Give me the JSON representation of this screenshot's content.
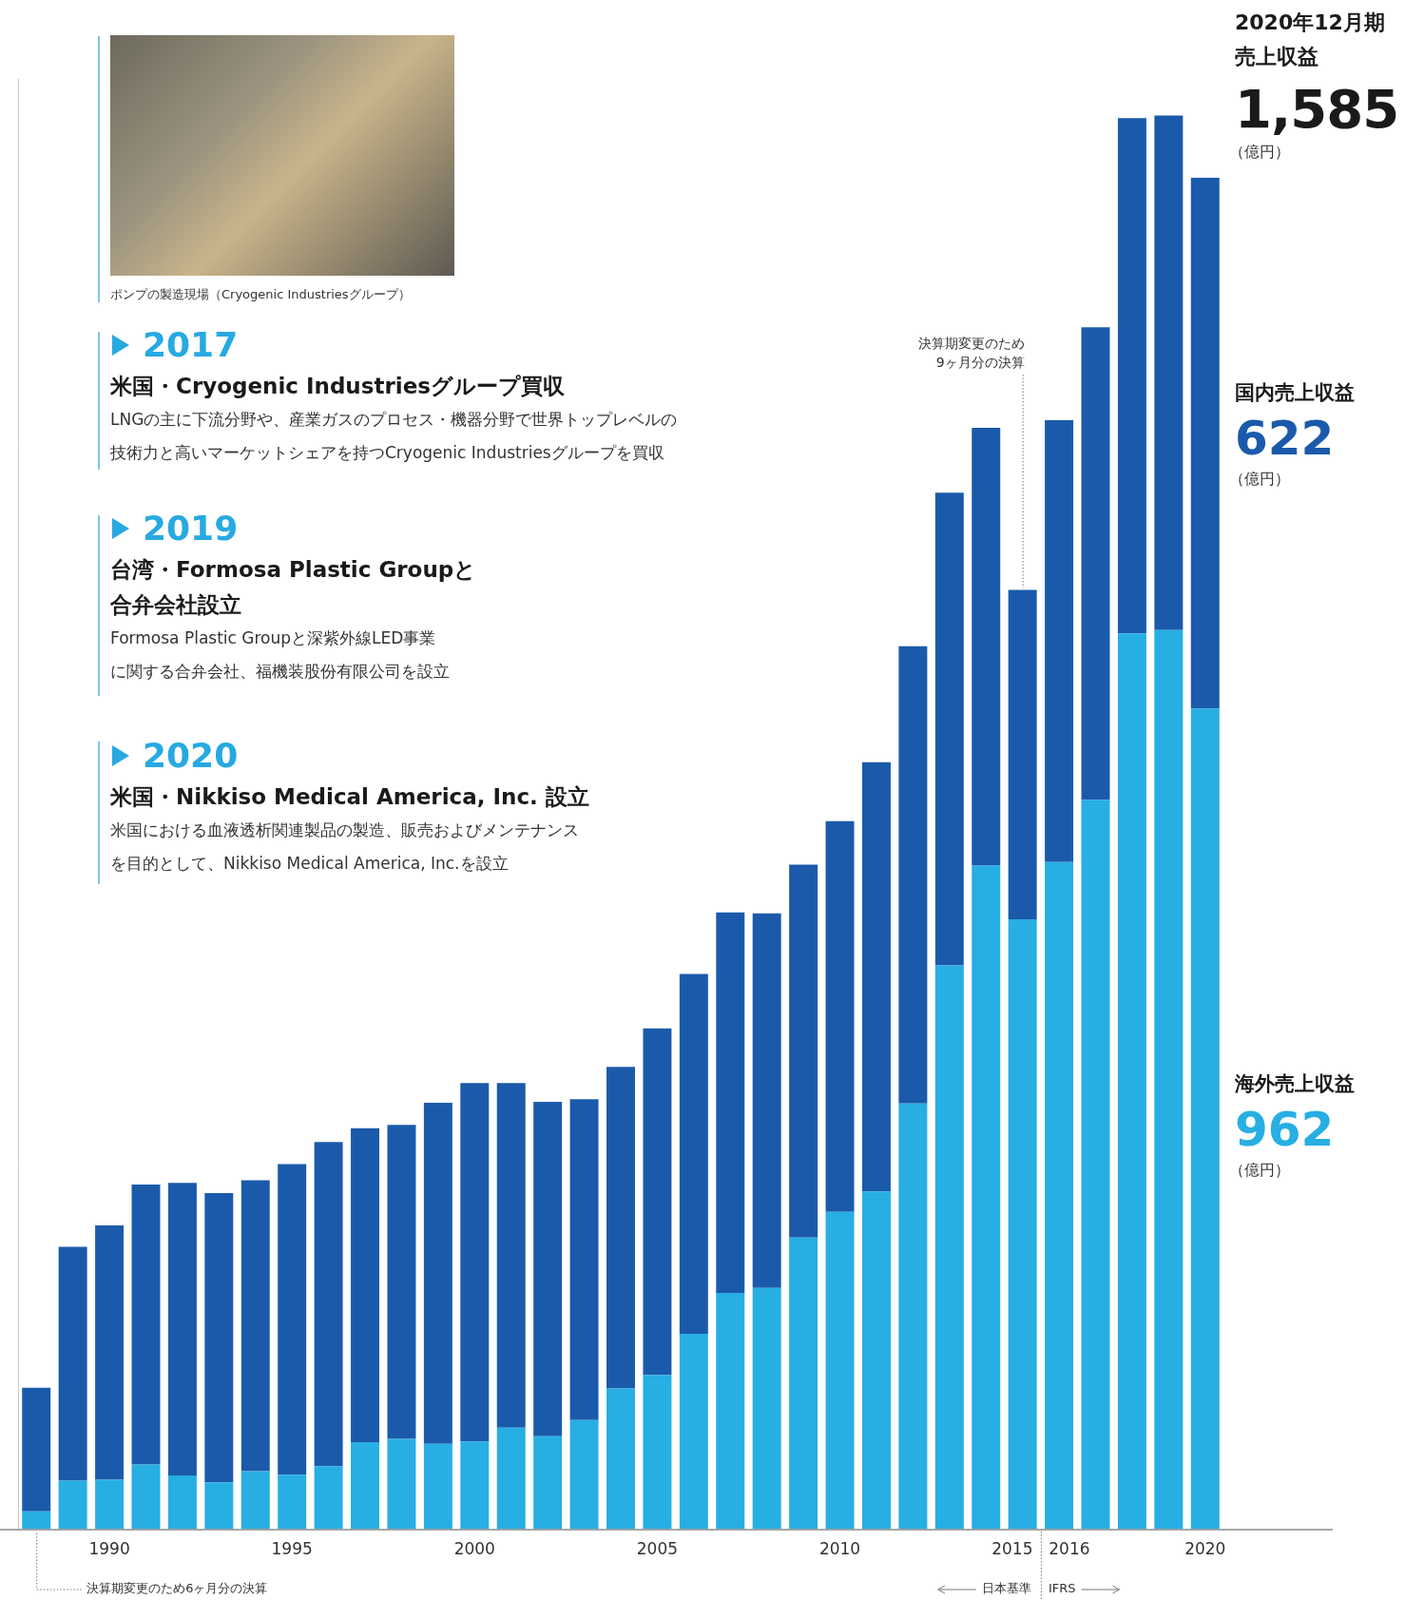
{
  "chart_data": {
    "type": "bar",
    "stacked": true,
    "grid": false,
    "tick_labels": "x",
    "categories": [
      null,
      null,
      "1990",
      null,
      null,
      null,
      null,
      "1995",
      null,
      null,
      null,
      null,
      "2000",
      null,
      null,
      null,
      null,
      "2005",
      null,
      null,
      null,
      null,
      "2010",
      null,
      null,
      null,
      null,
      "2015",
      "2016",
      null,
      null,
      null,
      "2020"
    ],
    "ylim": [
      0,
      1700
    ],
    "series": [
      {
        "name": "海外売上収益",
        "color": "#27aee3",
        "values": [
          21,
          57,
          58,
          76,
          63,
          55,
          68,
          64,
          74,
          102,
          106,
          100,
          103,
          119,
          109,
          128,
          165,
          181,
          229,
          277,
          283,
          342,
          372,
          396,
          499,
          661,
          778,
          715,
          782,
          855,
          1050,
          1054,
          962
        ],
        "unit": "（億円）"
      },
      {
        "name": "国内売上収益",
        "color": "#1b5aab",
        "values": [
          145,
          274,
          298,
          328,
          343,
          339,
          341,
          364,
          380,
          368,
          368,
          400,
          420,
          404,
          392,
          376,
          377,
          406,
          422,
          446,
          439,
          437,
          458,
          503,
          536,
          554,
          513,
          386,
          518,
          554,
          604,
          603,
          622
        ],
        "unit": "（億円）"
      }
    ],
    "summary": {
      "heading": [
        "2020年12月期",
        "売上収益"
      ],
      "value": 1585,
      "label": "1,585",
      "unit": "（億円）"
    },
    "notes": [
      {
        "text": [
          "決算期変更のため",
          "9ヶ月分の決算"
        ],
        "index": 27
      },
      {
        "text": [
          "決算期変更のため6ヶ月分の決算"
        ],
        "index": 0
      }
    ],
    "standards": {
      "before": "日本基準",
      "after": "IFRS",
      "index": 28
    }
  },
  "milestones": {
    "photo_caption": "ポンプの製造現場（Cryogenic Industriesグループ）",
    "items": [
      {
        "year": "2017",
        "title": [
          "米国・Cryogenic Industriesグループ買収"
        ],
        "text": [
          "LNGの主に下流分野や、産業ガスのプロセス・機器分野で世界トップレベルの",
          "技術力と高いマーケットシェアを持つCryogenic Industriesグループを買収"
        ]
      },
      {
        "year": "2019",
        "title": [
          "台湾・Formosa Plastic Groupと",
          "合弁会社設立"
        ],
        "text": [
          "Formosa Plastic Groupと深紫外線LED事業",
          "に関する合弁会社、福機装股份有限公司を設立"
        ]
      },
      {
        "year": "2020",
        "title": [
          "米国・Nikkiso Medical America, Inc. 設立"
        ],
        "text": [
          "米国における血液透析関連製品の製造、販売およびメンテナンス",
          "を目的として、Nikkiso Medical America, Inc.を設立"
        ]
      }
    ]
  }
}
